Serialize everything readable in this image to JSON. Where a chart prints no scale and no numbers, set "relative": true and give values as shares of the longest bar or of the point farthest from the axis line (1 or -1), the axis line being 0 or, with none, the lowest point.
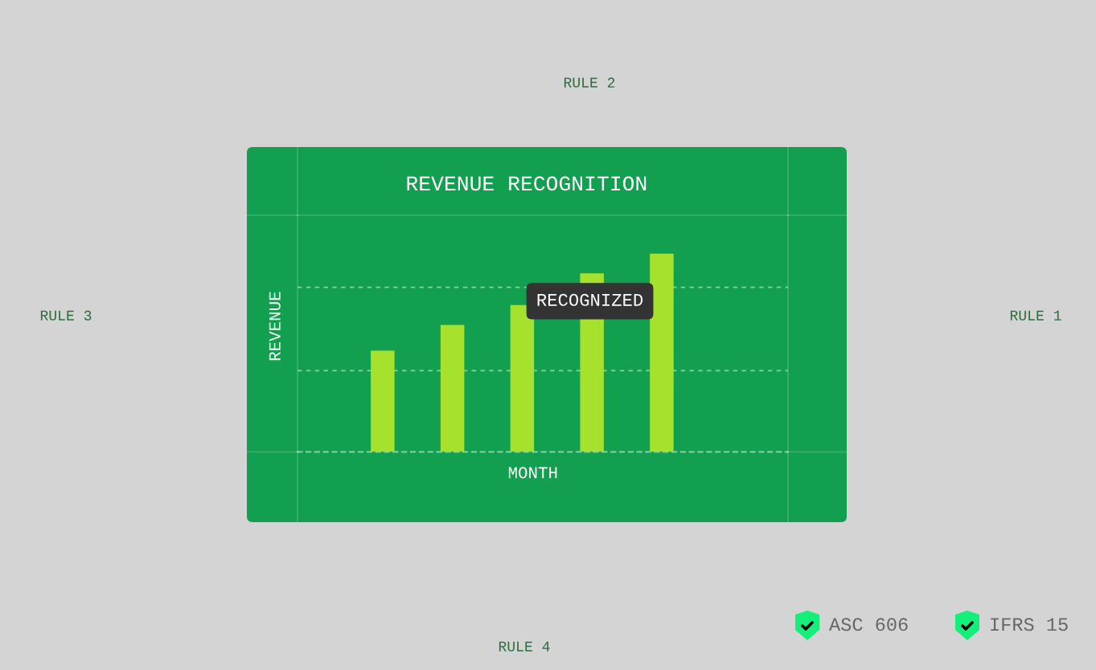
{
  "chart_data": {
    "type": "bar",
    "title": "REVENUE RECOGNITION",
    "xlabel": "MONTH",
    "ylabel": "REVENUE",
    "categories": [
      null,
      null,
      null,
      null,
      null
    ],
    "values": [
      0.51,
      0.64,
      0.74,
      0.9,
      1.0
    ],
    "color": "#a6e12d",
    "relative": true,
    "ref_lines": [
      {
        "axis": "y",
        "value": 0.41,
        "color": "#ffffff",
        "line_style": "dashed"
      },
      {
        "axis": "y",
        "value": 0.83,
        "color": "#ffffff",
        "line_style": "dashed"
      }
    ],
    "annotations": [
      "RECOGNIZED",
      "RULE 1",
      "RULE 2",
      "RULE 3",
      "RULE 4",
      "ASC 606",
      "IFRS 15"
    ]
  }
}
